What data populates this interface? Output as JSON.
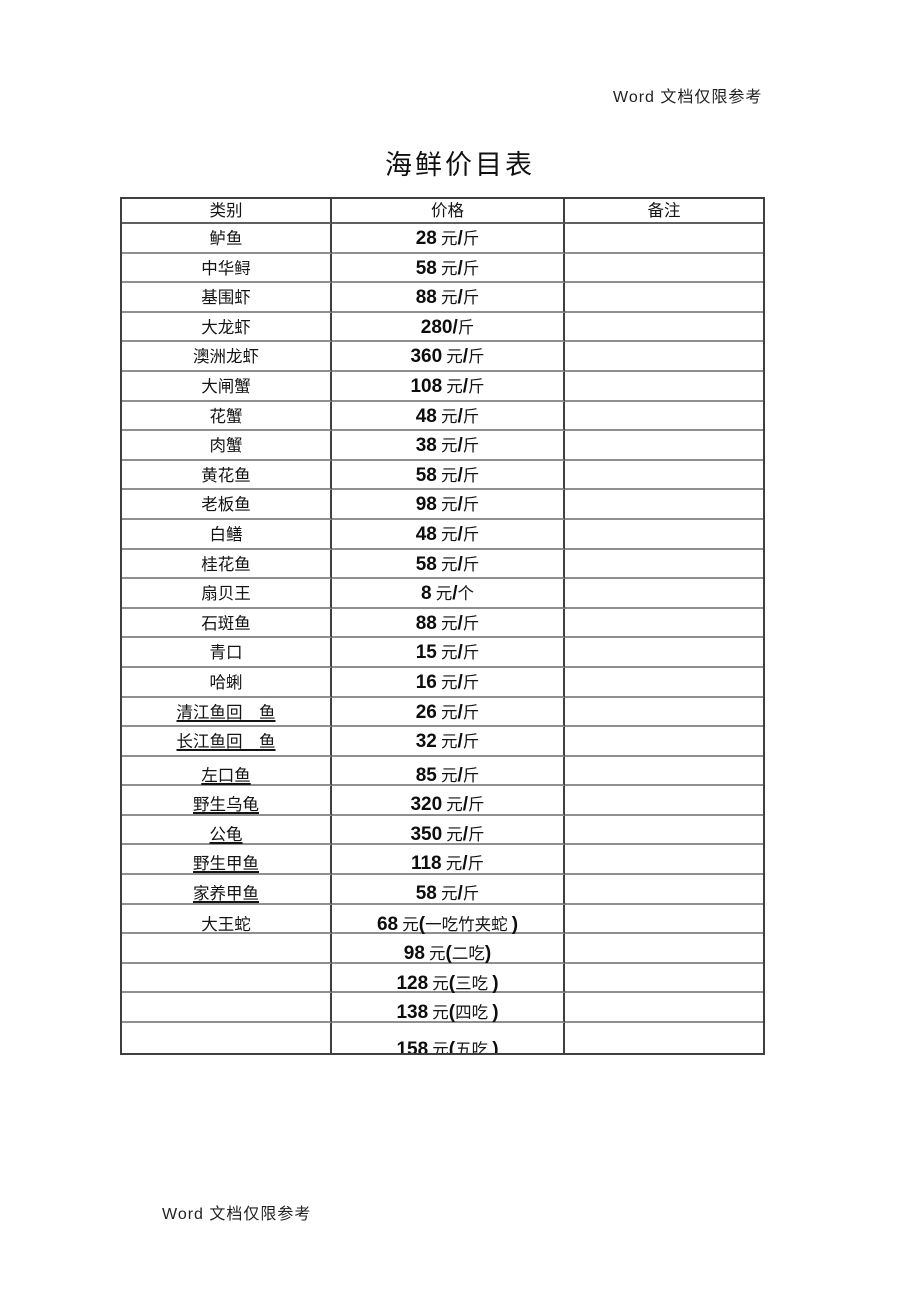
{
  "page": {
    "watermark": "Word 文档仅限参考",
    "title": "海鲜价目表"
  },
  "table": {
    "headers": [
      "类别",
      "价格",
      "备注"
    ],
    "rows": [
      {
        "category": "鲈鱼",
        "price": "28 元/斤",
        "note": ""
      },
      {
        "category": "中华鲟",
        "price": "58 元/斤",
        "note": ""
      },
      {
        "category": "基围虾",
        "price": "88 元/斤",
        "note": ""
      },
      {
        "category": "大龙虾",
        "price": "280/斤",
        "note": ""
      },
      {
        "category": "澳洲龙虾",
        "price": "360 元/斤",
        "note": ""
      },
      {
        "category": "大闸蟹",
        "price": "108 元/斤",
        "note": ""
      },
      {
        "category": "花蟹",
        "price": "48 元/斤",
        "note": ""
      },
      {
        "category": "肉蟹",
        "price": "38 元/斤",
        "note": ""
      },
      {
        "category": "黄花鱼",
        "price": "58 元/斤",
        "note": ""
      },
      {
        "category": "老板鱼",
        "price": "98 元/斤",
        "note": ""
      },
      {
        "category": "白鳝",
        "price": "48 元/斤",
        "note": ""
      },
      {
        "category": "桂花鱼",
        "price": "58 元/斤",
        "note": ""
      },
      {
        "category": "扇贝王",
        "price": "8 元/个",
        "note": ""
      },
      {
        "category": "石斑鱼",
        "price": "88 元/斤",
        "note": ""
      },
      {
        "category": "青口",
        "price": "15 元/斤",
        "note": ""
      },
      {
        "category": "哈蜊",
        "price": "16 元/斤",
        "note": ""
      },
      {
        "category": "清江鱼回　鱼",
        "price": "26 元/斤",
        "underline": true,
        "note": ""
      },
      {
        "category": "长江鱼回　鱼",
        "price": "32 元/斤",
        "underline": true,
        "note": ""
      },
      {
        "category": "左口鱼",
        "price": "85 元/斤",
        "underline": true,
        "note": ""
      },
      {
        "category": "野生乌龟",
        "price": "320 元/斤",
        "underline": true,
        "note": ""
      },
      {
        "category": "公龟",
        "price": "350 元/斤",
        "underline": true,
        "note": ""
      },
      {
        "category": "野生甲鱼",
        "price": "118 元/斤",
        "underline": true,
        "note": ""
      },
      {
        "category": "家养甲鱼",
        "price": "58 元/斤",
        "underline": true,
        "note": ""
      },
      {
        "category": "大王蛇",
        "price": "68 元(一吃竹夹蛇 )",
        "note": ""
      },
      {
        "category": "",
        "price": "98 元(二吃)",
        "note": ""
      },
      {
        "category": "",
        "price": "128 元(三吃 )",
        "note": ""
      },
      {
        "category": "",
        "price": "138 元(四吃 )",
        "note": ""
      },
      {
        "category": "",
        "price": "158 元(五吃 )",
        "note": ""
      }
    ]
  }
}
